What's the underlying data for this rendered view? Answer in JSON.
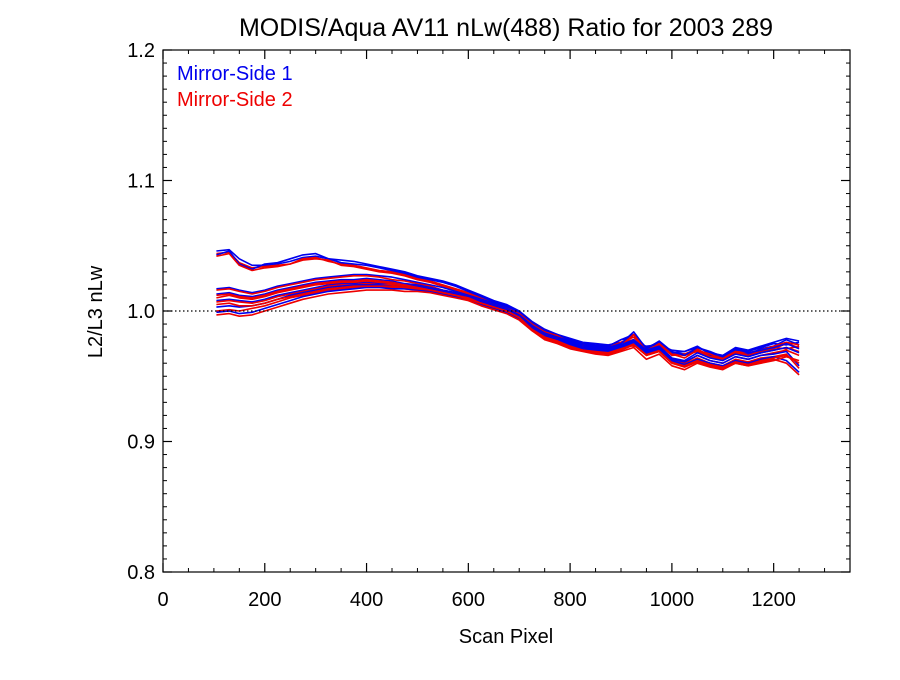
{
  "chart_data": {
    "type": "line",
    "title": "MODIS/Aqua AV11 nLw(488) Ratio for 2003 289",
    "xlabel": "Scan Pixel",
    "ylabel": "L2/L3 nLw",
    "xlim": [
      0,
      1350
    ],
    "ylim": [
      0.8,
      1.2
    ],
    "xticks": [
      0,
      200,
      400,
      600,
      800,
      1000,
      1200
    ],
    "xtick_labels": [
      "0",
      "200",
      "400",
      "600",
      "800",
      "1000",
      "1200"
    ],
    "yticks": [
      0.8,
      0.9,
      1.0,
      1.1,
      1.2
    ],
    "ytick_labels": [
      "0.8",
      "0.9",
      "1.0",
      "1.1",
      "1.2"
    ],
    "reference_line": {
      "y": 1.0,
      "style": "dotted",
      "color": "#000000"
    },
    "legend_placement": "top-left",
    "legend": [
      {
        "label": "Mirror-Side 1",
        "color": "#0000ee"
      },
      {
        "label": "Mirror-Side 2",
        "color": "#ee0000"
      }
    ],
    "x": [
      105,
      130,
      150,
      175,
      200,
      225,
      250,
      275,
      300,
      325,
      350,
      375,
      400,
      425,
      450,
      475,
      500,
      525,
      550,
      575,
      600,
      625,
      650,
      675,
      700,
      725,
      750,
      775,
      800,
      825,
      850,
      875,
      900,
      925,
      950,
      975,
      1000,
      1025,
      1050,
      1075,
      1100,
      1125,
      1150,
      1175,
      1200,
      1225,
      1250
    ],
    "series": [
      {
        "mirror_side": 1,
        "color": "#0000ee",
        "values": [
          1.046,
          1.047,
          1.04,
          1.035,
          1.035,
          1.036,
          1.038,
          1.041,
          1.042,
          1.04,
          1.039,
          1.038,
          1.036,
          1.034,
          1.032,
          1.03,
          1.027,
          1.025,
          1.023,
          1.02,
          1.016,
          1.012,
          1.008,
          1.005,
          1.0,
          0.992,
          0.986,
          0.982,
          0.979,
          0.976,
          0.975,
          0.974,
          0.976,
          0.975,
          0.973,
          0.974,
          0.97,
          0.969,
          0.972,
          0.968,
          0.966,
          0.971,
          0.969,
          0.972,
          0.975,
          0.974,
          0.976
        ]
      },
      {
        "mirror_side": 2,
        "color": "#ee0000",
        "values": [
          1.044,
          1.045,
          1.037,
          1.033,
          1.034,
          1.035,
          1.036,
          1.04,
          1.041,
          1.038,
          1.036,
          1.035,
          1.033,
          1.031,
          1.03,
          1.028,
          1.025,
          1.023,
          1.02,
          1.017,
          1.014,
          1.01,
          1.006,
          1.003,
          0.998,
          0.991,
          0.985,
          0.98,
          0.976,
          0.975,
          0.973,
          0.972,
          0.974,
          0.973,
          0.972,
          0.972,
          0.968,
          0.967,
          0.97,
          0.966,
          0.965,
          0.968,
          0.967,
          0.969,
          0.972,
          0.971,
          0.973
        ]
      },
      {
        "mirror_side": 1,
        "color": "#0000ee",
        "values": [
          1.043,
          1.046,
          1.036,
          1.032,
          1.036,
          1.037,
          1.04,
          1.043,
          1.044,
          1.04,
          1.037,
          1.036,
          1.035,
          1.033,
          1.031,
          1.029,
          1.026,
          1.024,
          1.022,
          1.019,
          1.015,
          1.011,
          1.007,
          1.004,
          0.999,
          0.99,
          0.984,
          0.981,
          0.978,
          0.974,
          0.972,
          0.973,
          0.978,
          0.98,
          0.971,
          0.976,
          0.968,
          0.967,
          0.97,
          0.966,
          0.964,
          0.97,
          0.967,
          0.971,
          0.973,
          0.978,
          0.974
        ]
      },
      {
        "mirror_side": 2,
        "color": "#ee0000",
        "values": [
          1.042,
          1.044,
          1.035,
          1.031,
          1.033,
          1.034,
          1.036,
          1.039,
          1.04,
          1.039,
          1.035,
          1.034,
          1.032,
          1.03,
          1.029,
          1.027,
          1.024,
          1.022,
          1.019,
          1.016,
          1.013,
          1.009,
          1.005,
          1.002,
          0.997,
          0.989,
          0.984,
          0.979,
          0.975,
          0.974,
          0.971,
          0.972,
          0.976,
          0.978,
          0.97,
          0.974,
          0.967,
          0.966,
          0.969,
          0.965,
          0.963,
          0.968,
          0.966,
          0.969,
          0.971,
          0.975,
          0.972
        ]
      },
      {
        "mirror_side": 1,
        "color": "#0000ee",
        "values": [
          1.017,
          1.018,
          1.016,
          1.014,
          1.016,
          1.019,
          1.021,
          1.023,
          1.025,
          1.026,
          1.027,
          1.028,
          1.028,
          1.027,
          1.026,
          1.024,
          1.022,
          1.02,
          1.018,
          1.015,
          1.012,
          1.009,
          1.006,
          1.003,
          0.999,
          0.991,
          0.985,
          0.982,
          0.978,
          0.975,
          0.974,
          0.973,
          0.978,
          0.982,
          0.972,
          0.976,
          0.968,
          0.969,
          0.973,
          0.967,
          0.966,
          0.972,
          0.97,
          0.973,
          0.976,
          0.979,
          0.977
        ]
      },
      {
        "mirror_side": 2,
        "color": "#ee0000",
        "values": [
          1.016,
          1.017,
          1.015,
          1.013,
          1.015,
          1.018,
          1.02,
          1.022,
          1.024,
          1.025,
          1.026,
          1.027,
          1.027,
          1.026,
          1.024,
          1.023,
          1.021,
          1.019,
          1.016,
          1.014,
          1.011,
          1.008,
          1.005,
          1.002,
          0.998,
          0.99,
          0.984,
          0.981,
          0.976,
          0.974,
          0.972,
          0.971,
          0.976,
          0.98,
          0.97,
          0.974,
          0.966,
          0.967,
          0.971,
          0.965,
          0.964,
          0.969,
          0.968,
          0.97,
          0.973,
          0.976,
          0.974
        ]
      },
      {
        "mirror_side": 1,
        "color": "#0000ee",
        "values": [
          1.013,
          1.014,
          1.012,
          1.011,
          1.013,
          1.016,
          1.018,
          1.02,
          1.022,
          1.023,
          1.024,
          1.024,
          1.025,
          1.024,
          1.023,
          1.021,
          1.02,
          1.018,
          1.016,
          1.014,
          1.011,
          1.008,
          1.005,
          1.002,
          0.997,
          0.989,
          0.983,
          0.98,
          0.977,
          0.974,
          0.973,
          0.972,
          0.975,
          0.984,
          0.971,
          0.977,
          0.969,
          0.966,
          0.972,
          0.969,
          0.965,
          0.971,
          0.968,
          0.97,
          0.972,
          0.975,
          0.971
        ]
      },
      {
        "mirror_side": 2,
        "color": "#ee0000",
        "values": [
          1.012,
          1.013,
          1.011,
          1.01,
          1.012,
          1.015,
          1.017,
          1.019,
          1.021,
          1.022,
          1.023,
          1.023,
          1.024,
          1.023,
          1.022,
          1.02,
          1.019,
          1.017,
          1.015,
          1.013,
          1.01,
          1.007,
          1.004,
          1.001,
          0.996,
          0.988,
          0.982,
          0.979,
          0.975,
          0.973,
          0.971,
          0.97,
          0.973,
          0.982,
          0.969,
          0.975,
          0.967,
          0.964,
          0.97,
          0.967,
          0.963,
          0.969,
          0.966,
          0.968,
          0.97,
          0.972,
          0.969
        ]
      },
      {
        "mirror_side": 1,
        "color": "#0000ee",
        "values": [
          1.008,
          1.009,
          1.008,
          1.007,
          1.009,
          1.012,
          1.014,
          1.016,
          1.018,
          1.02,
          1.021,
          1.021,
          1.022,
          1.021,
          1.021,
          1.02,
          1.019,
          1.017,
          1.015,
          1.013,
          1.01,
          1.007,
          1.004,
          1.001,
          0.996,
          0.988,
          0.982,
          0.979,
          0.976,
          0.973,
          0.972,
          0.971,
          0.974,
          0.978,
          0.97,
          0.973,
          0.964,
          0.962,
          0.968,
          0.964,
          0.962,
          0.967,
          0.965,
          0.968,
          0.97,
          0.972,
          0.968
        ]
      },
      {
        "mirror_side": 2,
        "color": "#ee0000",
        "values": [
          1.007,
          1.008,
          1.007,
          1.006,
          1.008,
          1.011,
          1.013,
          1.015,
          1.017,
          1.019,
          1.02,
          1.02,
          1.021,
          1.02,
          1.02,
          1.019,
          1.018,
          1.016,
          1.014,
          1.012,
          1.009,
          1.006,
          1.003,
          1.0,
          0.995,
          0.987,
          0.981,
          0.978,
          0.974,
          0.972,
          0.97,
          0.969,
          0.972,
          0.976,
          0.968,
          0.971,
          0.962,
          0.96,
          0.966,
          0.962,
          0.96,
          0.965,
          0.963,
          0.966,
          0.968,
          0.97,
          0.966
        ]
      },
      {
        "mirror_side": 1,
        "color": "#0000ee",
        "values": [
          1.003,
          1.004,
          1.003,
          1.004,
          1.006,
          1.009,
          1.012,
          1.014,
          1.016,
          1.018,
          1.019,
          1.02,
          1.02,
          1.02,
          1.019,
          1.018,
          1.017,
          1.016,
          1.014,
          1.012,
          1.01,
          1.006,
          1.003,
          1.0,
          0.995,
          0.987,
          0.981,
          0.978,
          0.975,
          0.972,
          0.971,
          0.97,
          0.973,
          0.977,
          0.969,
          0.972,
          0.963,
          0.961,
          0.966,
          0.962,
          0.96,
          0.965,
          0.963,
          0.966,
          0.967,
          0.969,
          0.958
        ]
      },
      {
        "mirror_side": 2,
        "color": "#ee0000",
        "values": [
          1.0,
          1.001,
          1.0,
          1.002,
          1.004,
          1.007,
          1.01,
          1.012,
          1.014,
          1.016,
          1.017,
          1.018,
          1.018,
          1.018,
          1.018,
          1.017,
          1.016,
          1.015,
          1.013,
          1.011,
          1.009,
          1.005,
          1.002,
          0.999,
          0.994,
          0.986,
          0.98,
          0.977,
          0.973,
          0.971,
          0.969,
          0.968,
          0.971,
          0.975,
          0.967,
          0.97,
          0.961,
          0.959,
          0.964,
          0.96,
          0.958,
          0.963,
          0.961,
          0.964,
          0.965,
          0.967,
          0.956
        ]
      },
      {
        "mirror_side": 1,
        "color": "#0000ee",
        "values": [
          0.999,
          1.0,
          0.998,
          0.999,
          1.002,
          1.005,
          1.008,
          1.011,
          1.013,
          1.015,
          1.016,
          1.017,
          1.018,
          1.018,
          1.017,
          1.017,
          1.016,
          1.015,
          1.013,
          1.011,
          1.009,
          1.005,
          1.002,
          0.999,
          0.994,
          0.986,
          0.98,
          0.977,
          0.974,
          0.971,
          0.97,
          0.969,
          0.972,
          0.976,
          0.968,
          0.971,
          0.962,
          0.959,
          0.963,
          0.96,
          0.958,
          0.962,
          0.96,
          0.963,
          0.965,
          0.962,
          0.953
        ]
      },
      {
        "mirror_side": 2,
        "color": "#ee0000",
        "values": [
          0.997,
          0.998,
          0.996,
          0.997,
          1.0,
          1.003,
          1.006,
          1.009,
          1.011,
          1.013,
          1.014,
          1.015,
          1.016,
          1.016,
          1.016,
          1.015,
          1.015,
          1.014,
          1.012,
          1.01,
          1.008,
          1.004,
          1.001,
          0.998,
          0.993,
          0.985,
          0.979,
          0.976,
          0.972,
          0.97,
          0.968,
          0.967,
          0.97,
          0.974,
          0.966,
          0.969,
          0.96,
          0.957,
          0.961,
          0.958,
          0.956,
          0.96,
          0.958,
          0.961,
          0.963,
          0.96,
          0.951
        ]
      },
      {
        "mirror_side": 2,
        "color": "#ee0000",
        "values": [
          1.01,
          1.012,
          1.01,
          1.009,
          1.011,
          1.014,
          1.016,
          1.018,
          1.02,
          1.021,
          1.022,
          1.022,
          1.023,
          1.022,
          1.021,
          1.02,
          1.018,
          1.016,
          1.014,
          1.012,
          1.009,
          1.006,
          1.003,
          1.0,
          0.995,
          0.985,
          0.978,
          0.975,
          0.971,
          0.969,
          0.967,
          0.966,
          0.969,
          0.972,
          0.963,
          0.967,
          0.958,
          0.955,
          0.96,
          0.957,
          0.955,
          0.96,
          0.958,
          0.96,
          0.962,
          0.965,
          0.962
        ]
      },
      {
        "mirror_side": 2,
        "color": "#ee0000",
        "values": [
          1.005,
          1.006,
          1.004,
          1.004,
          1.006,
          1.009,
          1.011,
          1.013,
          1.015,
          1.017,
          1.018,
          1.019,
          1.019,
          1.019,
          1.019,
          1.018,
          1.017,
          1.016,
          1.014,
          1.012,
          1.01,
          1.006,
          1.003,
          1.0,
          0.995,
          0.986,
          0.98,
          0.977,
          0.973,
          0.97,
          0.969,
          0.968,
          0.971,
          0.974,
          0.966,
          0.969,
          0.96,
          0.958,
          0.962,
          0.959,
          0.957,
          0.961,
          0.959,
          0.962,
          0.964,
          0.966,
          0.96
        ]
      }
    ]
  }
}
